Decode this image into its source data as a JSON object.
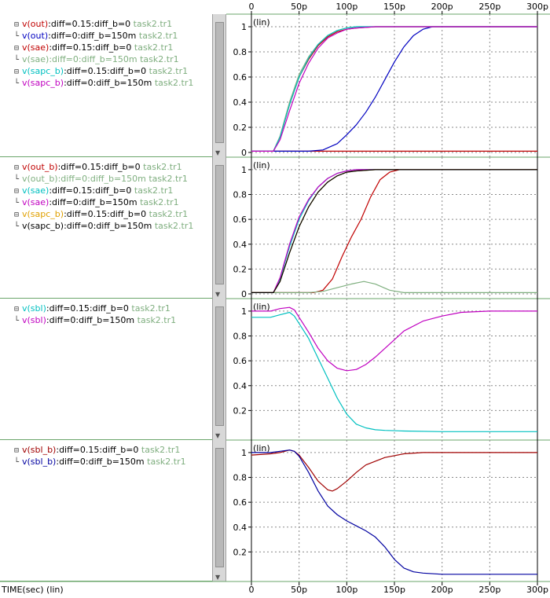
{
  "x_axis": {
    "label": "TIME(sec) (lin)",
    "ticks": [
      "0",
      "50p",
      "100p",
      "150p",
      "200p",
      "250p",
      "300p"
    ]
  },
  "panels": [
    {
      "scale_label": "(lin)",
      "legend": [
        {
          "signal": "v(out)",
          "params": ":diff=0.15:diff_b=0",
          "file": "task2.tr1",
          "color": "#c00000"
        },
        {
          "signal": "v(out)",
          "params": ":diff=0:diff_b=150m",
          "file": "task2.tr1",
          "color": "#0000c0"
        },
        {
          "signal": "v(sae)",
          "params": ":diff=0.15:diff_b=0",
          "file": "task2.tr1",
          "color": "#c00000"
        },
        {
          "signal": "v(sae)",
          "params": ":diff=0:diff_b=150m",
          "file": "task2.tr1",
          "color": "#80b080"
        },
        {
          "signal": "v(sapc_b)",
          "params": ":diff=0.15:diff_b=0",
          "file": "task2.tr1",
          "color": "#00c0c0"
        },
        {
          "signal": "v(sapc_b)",
          "params": ":diff=0:diff_b=150m",
          "file": "task2.tr1",
          "color": "#c000c0"
        }
      ]
    },
    {
      "scale_label": "(lin)",
      "legend": [
        {
          "signal": "v(out_b)",
          "params": ":diff=0.15:diff_b=0",
          "file": "task2.tr1",
          "color": "#c00000"
        },
        {
          "signal": "v(out_b)",
          "params": ":diff=0:diff_b=150m",
          "file": "task2.tr1",
          "color": "#80b080"
        },
        {
          "signal": "v(sae)",
          "params": ":diff=0.15:diff_b=0",
          "file": "task2.tr1",
          "color": "#00c0c0"
        },
        {
          "signal": "v(sae)",
          "params": ":diff=0:diff_b=150m",
          "file": "task2.tr1",
          "color": "#c000c0"
        },
        {
          "signal": "v(sapc_b)",
          "params": ":diff=0.15:diff_b=0",
          "file": "task2.tr1",
          "color": "#e0a000"
        },
        {
          "signal": "v(sapc_b)",
          "params": ":diff=0:diff_b=150m",
          "file": "task2.tr1",
          "color": "#000000"
        }
      ]
    },
    {
      "scale_label": "(lin)",
      "legend": [
        {
          "signal": "v(sbl)",
          "params": ":diff=0.15:diff_b=0",
          "file": "task2.tr1",
          "color": "#00c0c0"
        },
        {
          "signal": "v(sbl)",
          "params": ":diff=0:diff_b=150m",
          "file": "task2.tr1",
          "color": "#c000c0"
        }
      ]
    },
    {
      "scale_label": "(lin)",
      "legend": [
        {
          "signal": "v(sbl_b)",
          "params": ":diff=0.15:diff_b=0",
          "file": "task2.tr1",
          "color": "#a00000"
        },
        {
          "signal": "v(sbl_b)",
          "params": ":diff=0:diff_b=150m",
          "file": "task2.tr1",
          "color": "#0000a0"
        }
      ]
    }
  ],
  "chart_data": [
    {
      "type": "line",
      "xlim": [
        0,
        300
      ],
      "ylim": [
        0,
        1.05
      ],
      "y_ticks": [
        "0",
        "0.2",
        "0.4",
        "0.6",
        "0.8",
        "1"
      ],
      "grid": true,
      "series": [
        {
          "name": "v(out):diff=0.15:diff_b=0",
          "color": "#c00000",
          "x": [
            0,
            100,
            300
          ],
          "y": [
            0.01,
            0.01,
            0.01
          ]
        },
        {
          "name": "v(out):diff=0:diff_b=150m",
          "color": "#0000c0",
          "x": [
            0,
            60,
            75,
            90,
            100,
            110,
            120,
            130,
            140,
            150,
            160,
            170,
            180,
            190,
            200,
            300
          ],
          "y": [
            0.01,
            0.01,
            0.02,
            0.07,
            0.14,
            0.22,
            0.32,
            0.44,
            0.58,
            0.72,
            0.84,
            0.93,
            0.98,
            1.0,
            1.0,
            1.0
          ]
        },
        {
          "name": "v(sae):diff=0.15:diff_b=0",
          "color": "#c00000",
          "x": [
            0,
            23,
            30,
            40,
            50,
            60,
            70,
            80,
            90,
            100,
            110,
            130,
            160,
            300
          ],
          "y": [
            0.01,
            0.01,
            0.12,
            0.38,
            0.6,
            0.74,
            0.85,
            0.92,
            0.96,
            0.98,
            0.99,
            1.0,
            1.0,
            1.0
          ]
        },
        {
          "name": "v(sae):diff=0:diff_b=150m",
          "color": "#80b080",
          "x": [
            0,
            23,
            30,
            40,
            50,
            60,
            70,
            80,
            90,
            100,
            110,
            130,
            160,
            300
          ],
          "y": [
            0.01,
            0.01,
            0.13,
            0.4,
            0.62,
            0.76,
            0.86,
            0.93,
            0.97,
            0.99,
            1.0,
            1.0,
            1.0,
            1.0
          ]
        },
        {
          "name": "v(sapc_b):diff=0.15:diff_b=0",
          "color": "#00c0c0",
          "x": [
            0,
            23,
            30,
            40,
            50,
            60,
            70,
            80,
            90,
            100,
            110,
            130,
            160,
            300
          ],
          "y": [
            0.01,
            0.01,
            0.12,
            0.38,
            0.6,
            0.75,
            0.86,
            0.93,
            0.97,
            0.99,
            1.0,
            1.0,
            1.0,
            1.0
          ]
        },
        {
          "name": "v(sapc_b):diff=0:diff_b=150m",
          "color": "#c000c0",
          "x": [
            0,
            23,
            30,
            40,
            50,
            60,
            70,
            80,
            90,
            100,
            110,
            130,
            160,
            300
          ],
          "y": [
            0.01,
            0.01,
            0.1,
            0.33,
            0.55,
            0.71,
            0.83,
            0.91,
            0.95,
            0.98,
            0.99,
            1.0,
            1.0,
            1.0
          ]
        }
      ]
    },
    {
      "type": "line",
      "xlim": [
        0,
        300
      ],
      "ylim": [
        0,
        1.05
      ],
      "y_ticks": [
        "0",
        "0.2",
        "0.4",
        "0.6",
        "0.8",
        "1"
      ],
      "grid": true,
      "series": [
        {
          "name": "v(out_b):diff=0.15:diff_b=0",
          "color": "#c00000",
          "x": [
            0,
            65,
            75,
            85,
            95,
            105,
            115,
            125,
            135,
            145,
            155,
            170,
            300
          ],
          "y": [
            0.01,
            0.01,
            0.03,
            0.12,
            0.3,
            0.46,
            0.6,
            0.78,
            0.92,
            0.98,
            1.0,
            1.0,
            1.0
          ]
        },
        {
          "name": "v(out_b):diff=0:diff_b=150m",
          "color": "#80b080",
          "x": [
            0,
            60,
            75,
            90,
            105,
            118,
            130,
            145,
            160,
            300
          ],
          "y": [
            0.01,
            0.01,
            0.02,
            0.05,
            0.08,
            0.1,
            0.08,
            0.03,
            0.01,
            0.01
          ]
        },
        {
          "name": "v(sae):diff=0.15:diff_b=0",
          "color": "#00c0c0",
          "x": [
            0,
            23,
            30,
            40,
            50,
            60,
            70,
            80,
            90,
            100,
            110,
            130,
            160,
            300
          ],
          "y": [
            0.01,
            0.01,
            0.12,
            0.38,
            0.6,
            0.75,
            0.86,
            0.93,
            0.97,
            0.99,
            1.0,
            1.0,
            1.0,
            1.0
          ]
        },
        {
          "name": "v(sae):diff=0:diff_b=150m",
          "color": "#c000c0",
          "x": [
            0,
            23,
            30,
            40,
            50,
            60,
            70,
            80,
            90,
            100,
            110,
            130,
            160,
            300
          ],
          "y": [
            0.01,
            0.01,
            0.13,
            0.4,
            0.62,
            0.76,
            0.86,
            0.93,
            0.97,
            0.99,
            1.0,
            1.0,
            1.0,
            1.0
          ]
        },
        {
          "name": "v(sapc_b):diff=0.15:diff_b=0",
          "color": "#e0a000",
          "x": [
            0,
            23,
            30,
            40,
            50,
            60,
            70,
            80,
            90,
            100,
            110,
            130,
            160,
            300
          ],
          "y": [
            0.01,
            0.01,
            0.1,
            0.33,
            0.54,
            0.7,
            0.82,
            0.9,
            0.95,
            0.98,
            0.99,
            1.0,
            1.0,
            1.0
          ]
        },
        {
          "name": "v(sapc_b):diff=0:diff_b=150m",
          "color": "#000000",
          "x": [
            0,
            23,
            30,
            40,
            50,
            60,
            70,
            80,
            90,
            100,
            110,
            130,
            160,
            300
          ],
          "y": [
            0.01,
            0.01,
            0.1,
            0.33,
            0.54,
            0.7,
            0.82,
            0.9,
            0.95,
            0.98,
            0.99,
            1.0,
            1.0,
            1.0
          ]
        }
      ]
    },
    {
      "type": "line",
      "xlim": [
        0,
        300
      ],
      "ylim": [
        0,
        1.05
      ],
      "y_ticks": [
        "0.2",
        "0.4",
        "0.6",
        "0.8",
        "1"
      ],
      "grid": true,
      "series": [
        {
          "name": "v(sbl):diff=0.15:diff_b=0",
          "color": "#00c0c0",
          "x": [
            0,
            20,
            30,
            40,
            45,
            50,
            60,
            70,
            80,
            90,
            100,
            110,
            120,
            130,
            140,
            160,
            200,
            300
          ],
          "y": [
            0.95,
            0.95,
            0.97,
            0.99,
            0.96,
            0.9,
            0.78,
            0.62,
            0.46,
            0.3,
            0.17,
            0.09,
            0.06,
            0.045,
            0.04,
            0.035,
            0.03,
            0.03
          ]
        },
        {
          "name": "v(sbl):diff=0:diff_b=150m",
          "color": "#c000c0",
          "x": [
            0,
            20,
            30,
            40,
            45,
            50,
            60,
            70,
            80,
            90,
            100,
            110,
            120,
            130,
            140,
            150,
            160,
            180,
            200,
            220,
            250,
            300
          ],
          "y": [
            1.0,
            1.0,
            1.02,
            1.03,
            1.01,
            0.95,
            0.83,
            0.7,
            0.6,
            0.54,
            0.52,
            0.53,
            0.57,
            0.63,
            0.7,
            0.77,
            0.84,
            0.92,
            0.96,
            0.99,
            1.0,
            1.0
          ]
        }
      ]
    },
    {
      "type": "line",
      "xlim": [
        0,
        300
      ],
      "ylim": [
        0,
        1.05
      ],
      "y_ticks": [
        "0.2",
        "0.4",
        "0.6",
        "0.8",
        "1"
      ],
      "grid": true,
      "series": [
        {
          "name": "v(sbl_b):diff=0.15:diff_b=0",
          "color": "#a00000",
          "x": [
            0,
            20,
            30,
            40,
            45,
            50,
            60,
            70,
            80,
            85,
            90,
            100,
            110,
            120,
            140,
            160,
            180,
            200,
            300
          ],
          "y": [
            0.98,
            0.99,
            1.0,
            1.02,
            1.01,
            0.98,
            0.88,
            0.77,
            0.7,
            0.69,
            0.71,
            0.77,
            0.84,
            0.9,
            0.96,
            0.99,
            1.0,
            1.0,
            1.0
          ]
        },
        {
          "name": "v(sbl_b):diff=0:diff_b=150m",
          "color": "#0000a0",
          "x": [
            0,
            20,
            30,
            40,
            45,
            50,
            60,
            70,
            80,
            90,
            100,
            110,
            120,
            130,
            140,
            150,
            160,
            170,
            180,
            200,
            250,
            300
          ],
          "y": [
            1.0,
            1.0,
            1.01,
            1.02,
            1.01,
            0.97,
            0.84,
            0.69,
            0.57,
            0.5,
            0.45,
            0.41,
            0.37,
            0.32,
            0.24,
            0.14,
            0.07,
            0.04,
            0.03,
            0.02,
            0.02,
            0.02
          ]
        }
      ]
    }
  ]
}
